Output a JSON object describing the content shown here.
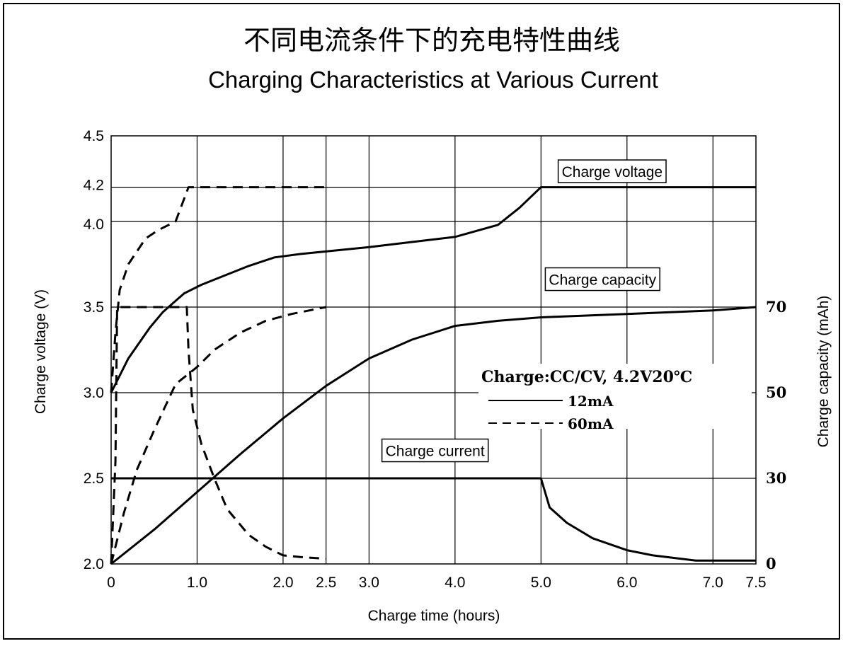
{
  "chart_data": {
    "type": "line",
    "title_cn": "不同电流条件下的充电特性曲线",
    "title": "Charging Characteristics at Various Current",
    "xlabel": "Charge time (hours)",
    "ylabel": "Charge voltage (V)",
    "y2label": "Charge capacity (mAh)",
    "xlim": [
      0,
      7.5
    ],
    "ylim": [
      2.0,
      4.5
    ],
    "y2lim": [
      0,
      70
    ],
    "grid": true,
    "x_ticks": [
      {
        "value": 0,
        "label": "0"
      },
      {
        "value": 1.0,
        "label": "1.0"
      },
      {
        "value": 2.0,
        "label": "2.0"
      },
      {
        "value": 2.5,
        "label": "2.5"
      },
      {
        "value": 3.0,
        "label": "3.0"
      },
      {
        "value": 4.0,
        "label": "4.0"
      },
      {
        "value": 5.0,
        "label": "5.0"
      },
      {
        "value": 6.0,
        "label": "6.0"
      },
      {
        "value": 7.0,
        "label": "7.0"
      },
      {
        "value": 7.5,
        "label": "7.5"
      }
    ],
    "y_ticks": [
      {
        "value": 2.0,
        "label": "2.0"
      },
      {
        "value": 2.5,
        "label": "2.5"
      },
      {
        "value": 3.0,
        "label": "3.0"
      },
      {
        "value": 3.5,
        "label": "3.5"
      },
      {
        "value": 4.0,
        "label": "4.0"
      },
      {
        "value": 4.2,
        "label": "4.2"
      },
      {
        "value": 4.5,
        "label": "4.5"
      }
    ],
    "y2_ticks": [
      {
        "value": 0,
        "label": "0",
        "at_voltage": 2.0
      },
      {
        "value": 30,
        "label": "30",
        "at_voltage": 2.5
      },
      {
        "value": 50,
        "label": "50",
        "at_voltage": 3.0
      },
      {
        "value": 70,
        "label": "70",
        "at_voltage": 3.5
      }
    ],
    "annotations": [
      {
        "text": "Charge voltage",
        "x": 5.2,
        "y": 4.26
      },
      {
        "text": "Charge capacity",
        "x": 5.05,
        "y": 3.63
      },
      {
        "text": "Charge current",
        "x": 3.15,
        "y": 2.63
      }
    ],
    "legend": {
      "title": "Charge:CC/CV, 4.2V20℃",
      "position": "center-right",
      "items": [
        {
          "label": "12mA",
          "style": "solid"
        },
        {
          "label": "60mA",
          "style": "dashed"
        }
      ]
    },
    "series": [
      {
        "name": "12mA",
        "quantity": "Charge voltage",
        "style": "solid",
        "points": [
          [
            0,
            3.0
          ],
          [
            0.2,
            3.2
          ],
          [
            0.45,
            3.38
          ],
          [
            0.6,
            3.47
          ],
          [
            0.85,
            3.58
          ],
          [
            1.05,
            3.63
          ],
          [
            1.3,
            3.68
          ],
          [
            1.6,
            3.74
          ],
          [
            1.9,
            3.79
          ],
          [
            2.2,
            3.81
          ],
          [
            2.6,
            3.83
          ],
          [
            3.0,
            3.85
          ],
          [
            3.5,
            3.88
          ],
          [
            4.0,
            3.91
          ],
          [
            4.5,
            3.98
          ],
          [
            4.75,
            4.08
          ],
          [
            5.0,
            4.2
          ],
          [
            7.5,
            4.2
          ]
        ]
      },
      {
        "name": "12mA",
        "quantity": "Charge capacity",
        "style": "solid",
        "points": [
          [
            0,
            2.0
          ],
          [
            0.5,
            2.2
          ],
          [
            1.0,
            2.42
          ],
          [
            1.5,
            2.64
          ],
          [
            2.0,
            2.85
          ],
          [
            2.5,
            3.04
          ],
          [
            3.0,
            3.2
          ],
          [
            3.5,
            3.31
          ],
          [
            4.0,
            3.39
          ],
          [
            4.5,
            3.42
          ],
          [
            5.0,
            3.44
          ],
          [
            5.5,
            3.45
          ],
          [
            6.0,
            3.46
          ],
          [
            6.5,
            3.47
          ],
          [
            7.0,
            3.48
          ],
          [
            7.5,
            3.5
          ]
        ]
      },
      {
        "name": "12mA",
        "quantity": "Charge current",
        "style": "solid",
        "points": [
          [
            0,
            2.5
          ],
          [
            5.0,
            2.5
          ],
          [
            5.1,
            2.33
          ],
          [
            5.3,
            2.24
          ],
          [
            5.6,
            2.15
          ],
          [
            6.0,
            2.08
          ],
          [
            6.3,
            2.05
          ],
          [
            6.8,
            2.02
          ],
          [
            7.5,
            2.02
          ]
        ]
      },
      {
        "name": "60mA",
        "quantity": "Charge voltage",
        "style": "dashed",
        "points": [
          [
            0,
            3.0
          ],
          [
            0.05,
            3.35
          ],
          [
            0.1,
            3.6
          ],
          [
            0.2,
            3.75
          ],
          [
            0.4,
            3.9
          ],
          [
            0.55,
            3.95
          ],
          [
            0.75,
            4.0
          ],
          [
            0.9,
            4.2
          ],
          [
            2.5,
            4.2
          ]
        ]
      },
      {
        "name": "60mA",
        "quantity": "Charge capacity",
        "style": "dashed",
        "points": [
          [
            0,
            2.0
          ],
          [
            0.15,
            2.3
          ],
          [
            0.3,
            2.55
          ],
          [
            0.5,
            2.78
          ],
          [
            0.75,
            3.05
          ],
          [
            1.0,
            3.15
          ],
          [
            1.2,
            3.25
          ],
          [
            1.5,
            3.35
          ],
          [
            1.8,
            3.42
          ],
          [
            2.1,
            3.46
          ],
          [
            2.5,
            3.5
          ]
        ]
      },
      {
        "name": "60mA",
        "quantity": "Charge current",
        "style": "dashed",
        "points": [
          [
            0,
            2.0
          ],
          [
            0.05,
            2.6
          ],
          [
            0.07,
            3.5
          ],
          [
            0.88,
            3.5
          ],
          [
            0.9,
            3.25
          ],
          [
            0.95,
            2.9
          ],
          [
            1.05,
            2.7
          ],
          [
            1.2,
            2.5
          ],
          [
            1.35,
            2.32
          ],
          [
            1.6,
            2.17
          ],
          [
            1.8,
            2.1
          ],
          [
            2.0,
            2.05
          ],
          [
            2.2,
            2.04
          ],
          [
            2.5,
            2.03
          ]
        ]
      }
    ]
  }
}
